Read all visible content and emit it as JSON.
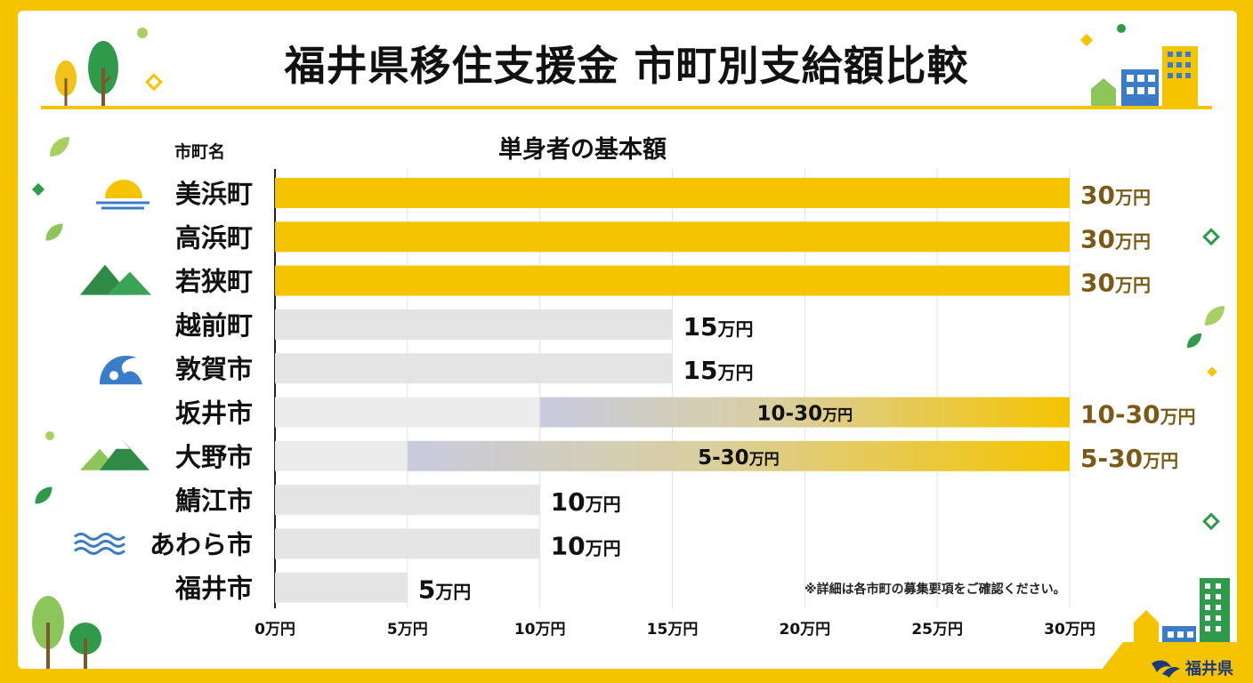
{
  "title": "福井県移住支援金 市町別支給額比較",
  "subtitle": "単身者の基本額",
  "column_header": "市町名",
  "footnote": "※詳細は各市町の募集要項をご確認ください。",
  "logo_text": "福井県",
  "colors": {
    "frame": "#f5c400",
    "bar_highlight": "#f5c400",
    "bar_base": "#e4e4e4",
    "value_label_highlight": "#7a5a14",
    "value_label_base": "#111111",
    "gradient_start": "#c8cbe0"
  },
  "chart_data": {
    "type": "bar",
    "orientation": "horizontal",
    "title": "単身者の基本額",
    "xlim": [
      0,
      30
    ],
    "x_unit": "万円",
    "x_ticks": [
      "0万円",
      "5万円",
      "10万円",
      "15万円",
      "20万円",
      "25万円",
      "30万円"
    ],
    "x_tick_values": [
      0,
      5,
      10,
      15,
      20,
      25,
      30
    ],
    "grid": true,
    "categories": [
      "美浜町",
      "高浜町",
      "若狭町",
      "越前町",
      "敦賀市",
      "坂井市",
      "大野市",
      "鯖江市",
      "あわら市",
      "福井市"
    ],
    "bars": [
      {
        "name": "美浜町",
        "min": 30,
        "max": 30,
        "label": "30万円",
        "highlight": true,
        "icon": "sunrise-icon"
      },
      {
        "name": "高浜町",
        "min": 30,
        "max": 30,
        "label": "30万円",
        "highlight": true,
        "icon": ""
      },
      {
        "name": "若狭町",
        "min": 30,
        "max": 30,
        "label": "30万円",
        "highlight": true,
        "icon": "mountains-icon"
      },
      {
        "name": "越前町",
        "min": 15,
        "max": 15,
        "label": "15万円",
        "highlight": false,
        "icon": ""
      },
      {
        "name": "敦賀市",
        "min": 15,
        "max": 15,
        "label": "15万円",
        "highlight": false,
        "icon": "wave-icon"
      },
      {
        "name": "坂井市",
        "min": 10,
        "max": 30,
        "label": "10-30万円",
        "highlight": true,
        "icon": ""
      },
      {
        "name": "大野市",
        "min": 5,
        "max": 30,
        "label": "5-30万円",
        "highlight": true,
        "icon": "snow-mountains-icon"
      },
      {
        "name": "鯖江市",
        "min": 10,
        "max": 10,
        "label": "10万円",
        "highlight": false,
        "icon": ""
      },
      {
        "name": "あわら市",
        "min": 10,
        "max": 10,
        "label": "10万円",
        "highlight": false,
        "icon": "water-waves-icon"
      },
      {
        "name": "福井市",
        "min": 5,
        "max": 5,
        "label": "5万円",
        "highlight": false,
        "icon": ""
      }
    ]
  }
}
